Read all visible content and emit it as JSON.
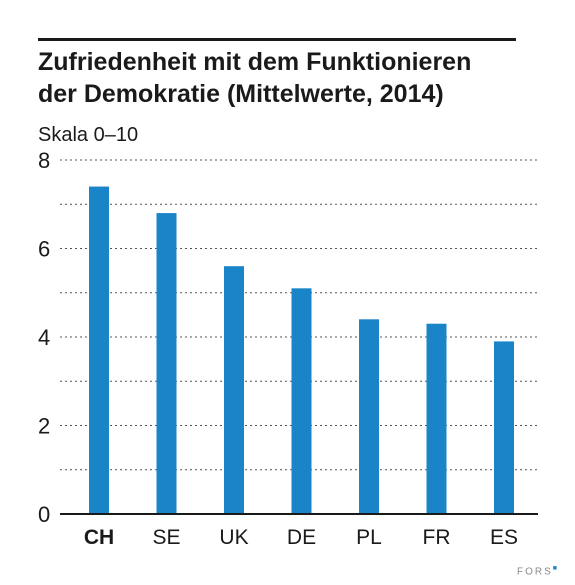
{
  "title_lines": [
    "Zufriedenheit mit dem Funktionieren",
    "der Demokratie (Mittelwerte, 2014)"
  ],
  "unit_label": "Skala 0–10",
  "brand": {
    "text": "FORS",
    "mark": "■"
  },
  "colors": {
    "bar": "#1a84c9",
    "grid": "#555555",
    "axis": "#1a1a1a",
    "text": "#1a1a1a"
  },
  "chart_data": {
    "type": "bar",
    "title": "Zufriedenheit mit dem Funktionieren der Demokratie (Mittelwerte, 2014)",
    "ylabel": "Skala 0–10",
    "categories": [
      "CH",
      "SE",
      "UK",
      "DE",
      "PL",
      "FR",
      "ES"
    ],
    "highlight_category": "CH",
    "values": [
      7.4,
      6.8,
      5.6,
      5.1,
      4.4,
      4.3,
      3.9
    ],
    "ylim": [
      0,
      8
    ],
    "yticks": [
      0,
      2,
      4,
      6,
      8
    ],
    "grid": true,
    "grid_style": "dotted"
  }
}
